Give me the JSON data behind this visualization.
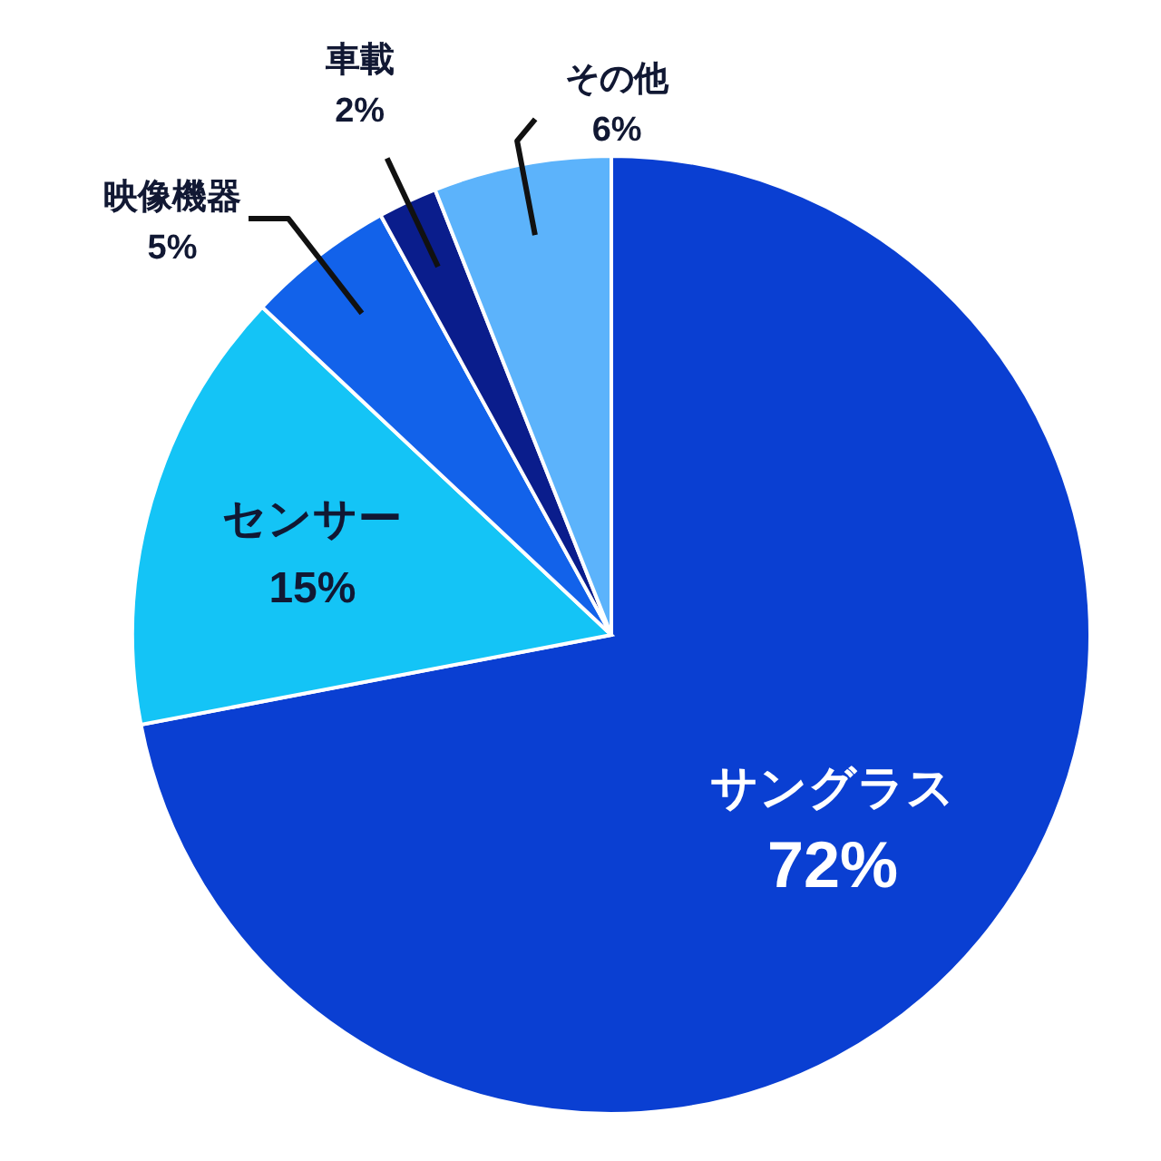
{
  "chart_data": {
    "type": "pie",
    "categories": [
      "サングラス",
      "センサー",
      "映像機器",
      "車載",
      "その他"
    ],
    "values": [
      72,
      15,
      5,
      2,
      6
    ],
    "value_labels": [
      "72%",
      "15%",
      "5%",
      "2%",
      "6%"
    ],
    "colors": [
      "#0a3fd2",
      "#14c4f6",
      "#1262ea",
      "#0a1d8c",
      "#5cb3fb"
    ]
  }
}
